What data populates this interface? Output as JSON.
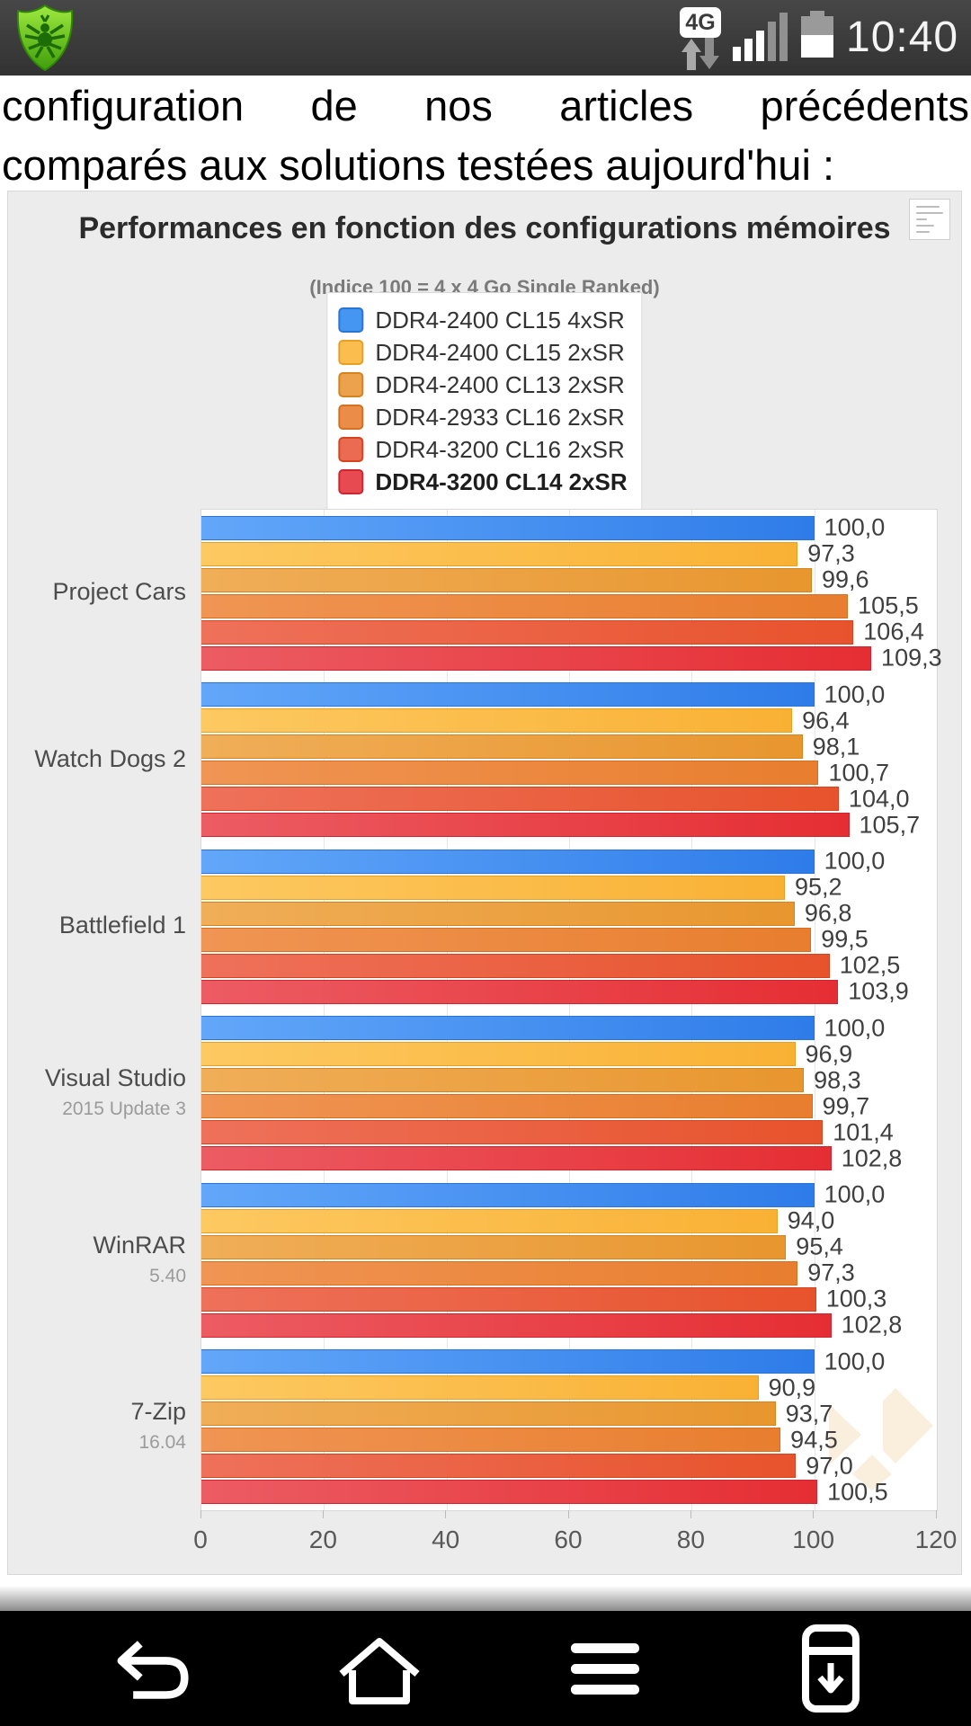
{
  "status_bar": {
    "time": "10:40",
    "network_badge": "4G",
    "signal_bars_total": 5,
    "signal_bars_active": 3,
    "battery_percent_visual": 55
  },
  "article": {
    "line1_words": [
      "configuration",
      "de",
      "nos",
      "articles",
      "précédents"
    ],
    "line2": "comparés aux solutions testées aujourd'hui :"
  },
  "chart_data": {
    "type": "bar",
    "orientation": "horizontal",
    "title": "Performances en fonction des configurations mémoires",
    "subtitle": "(Indice 100 = 4 x 4 Go Single Ranked)",
    "xlim": [
      0,
      120
    ],
    "xticks": [
      0,
      20,
      40,
      60,
      80,
      100,
      120
    ],
    "grid": true,
    "legend_position": "top-center",
    "value_decimal_separator": ",",
    "categories": [
      {
        "label": "Project Cars",
        "sublabel": ""
      },
      {
        "label": "Watch Dogs 2",
        "sublabel": ""
      },
      {
        "label": "Battlefield 1",
        "sublabel": ""
      },
      {
        "label": "Visual Studio",
        "sublabel": "2015 Update 3"
      },
      {
        "label": "WinRAR",
        "sublabel": "5.40"
      },
      {
        "label": "7-Zip",
        "sublabel": "16.04"
      }
    ],
    "series": [
      {
        "name": "DDR4-2400 CL15 4xSR",
        "emphasis": false,
        "color": "#4596f3",
        "border": "#2a74d6",
        "gradient": [
          "#62a7f9",
          "#2e7ce9"
        ],
        "values": [
          100.0,
          100.0,
          100.0,
          100.0,
          100.0,
          100.0
        ]
      },
      {
        "name": "DDR4-2400 CL15 2xSR",
        "emphasis": false,
        "color": "#fbbd4d",
        "border": "#e8a024",
        "gradient": [
          "#fdc961",
          "#f9b134"
        ],
        "values": [
          97.3,
          96.4,
          95.2,
          96.9,
          94.0,
          90.9
        ]
      },
      {
        "name": "DDR4-2400 CL13 2xSR",
        "emphasis": false,
        "color": "#eca14c",
        "border": "#d4831f",
        "gradient": [
          "#f0ae58",
          "#e8962e"
        ],
        "values": [
          99.6,
          98.1,
          96.8,
          98.3,
          95.4,
          93.7
        ]
      },
      {
        "name": "DDR4-2933 CL16 2xSR",
        "emphasis": false,
        "color": "#ec8c49",
        "border": "#d4701f",
        "gradient": [
          "#f09554",
          "#e87e2e"
        ],
        "values": [
          105.5,
          100.7,
          99.5,
          99.7,
          97.3,
          94.5
        ]
      },
      {
        "name": "DDR4-3200 CL16 2xSR",
        "emphasis": false,
        "color": "#ea6a52",
        "border": "#d4451f",
        "gradient": [
          "#ee715a",
          "#e7532c"
        ],
        "values": [
          106.4,
          104.0,
          102.5,
          101.4,
          100.3,
          97.0
        ]
      },
      {
        "name": "DDR4-3200 CL14 2xSR",
        "emphasis": true,
        "color": "#e84a52",
        "border": "#d02430",
        "gradient": [
          "#ec5c63",
          "#e52e33"
        ],
        "values": [
          109.3,
          105.7,
          103.9,
          102.8,
          102.8,
          100.5
        ]
      }
    ]
  },
  "nav_bar": {
    "buttons": [
      {
        "name": "back"
      },
      {
        "name": "home"
      },
      {
        "name": "menu"
      },
      {
        "name": "download"
      }
    ]
  },
  "colors": {
    "status_bar_bg": "#3b3b3b",
    "card_bg": "#ececec",
    "watermark": "#faeedd"
  }
}
